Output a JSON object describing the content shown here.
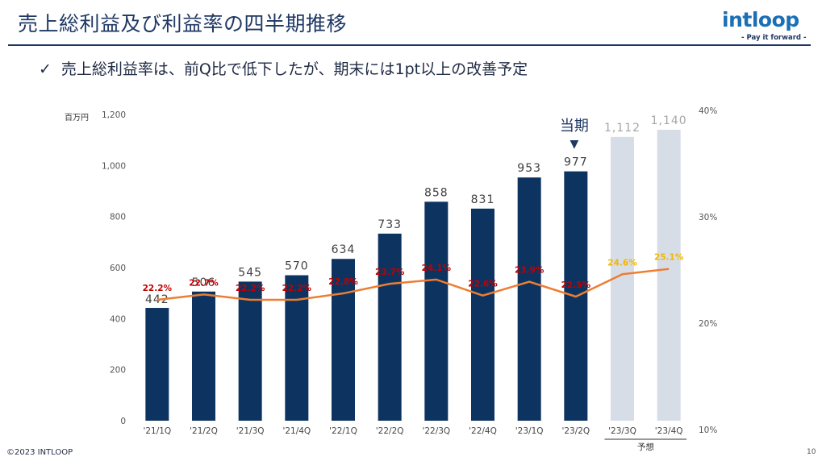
{
  "header": {
    "title": "売上総利益及び利益率の四半期推移",
    "logo_word": "intloop",
    "logo_tagline": "- Pay it forward -"
  },
  "bullet": {
    "check": "✓",
    "text": "売上総利益率は、前Q比で低下したが、期末には1pt以上の改善予定"
  },
  "colors": {
    "actual_bar": "#0d3461",
    "forecast_bar": "#d7dde7",
    "line": "#ed7d31",
    "rate_actual": "#c00000",
    "rate_forecast": "#f2b600",
    "value_actual": "#404040",
    "value_forecast": "#a6a6a6",
    "current_marker": "#1f3864"
  },
  "chart_data": {
    "type": "bar+line",
    "unit_label": "百万円",
    "categories": [
      "'21/1Q",
      "'21/2Q",
      "'21/3Q",
      "'21/4Q",
      "'22/1Q",
      "'22/2Q",
      "'22/3Q",
      "'22/4Q",
      "'23/1Q",
      "'23/2Q",
      "'23/3Q",
      "'23/4Q"
    ],
    "series": [
      {
        "name": "売上総利益",
        "axis": "left",
        "values": [
          442,
          506,
          545,
          570,
          634,
          733,
          858,
          831,
          953,
          977,
          1112,
          1140
        ],
        "labels": [
          "442",
          "506",
          "545",
          "570",
          "634",
          "733",
          "858",
          "831",
          "953",
          "977",
          "1,112",
          "1,140"
        ],
        "forecast_from_index": 10
      },
      {
        "name": "売上総利益率",
        "axis": "right",
        "values": [
          22.2,
          22.7,
          22.2,
          22.2,
          22.8,
          23.7,
          24.1,
          22.6,
          23.9,
          22.5,
          24.6,
          25.1
        ],
        "labels": [
          "22.2%",
          "22.7%",
          "22.2%",
          "22.2%",
          "22.8%",
          "23.7%",
          "24.1%",
          "22.6%",
          "23.9%",
          "22.5%",
          "24.6%",
          "25.1%"
        ]
      }
    ],
    "left_axis": {
      "min": 0,
      "max": 1200,
      "ticks": [
        0,
        200,
        400,
        600,
        800,
        1000,
        1200
      ],
      "tick_labels": [
        "0",
        "200",
        "400",
        "600",
        "800",
        "1,000",
        "1,200"
      ]
    },
    "right_axis": {
      "min": 10,
      "max": 40,
      "ticks": [
        10,
        20,
        30,
        40
      ],
      "tick_labels": [
        "10%",
        "20%",
        "30%",
        "40%"
      ]
    },
    "current_period": {
      "index": 9,
      "label": "当期",
      "marker": "▼"
    },
    "forecast_label": "予想"
  },
  "footer": {
    "copyright": "©2023 INTLOOP",
    "page": "10"
  }
}
